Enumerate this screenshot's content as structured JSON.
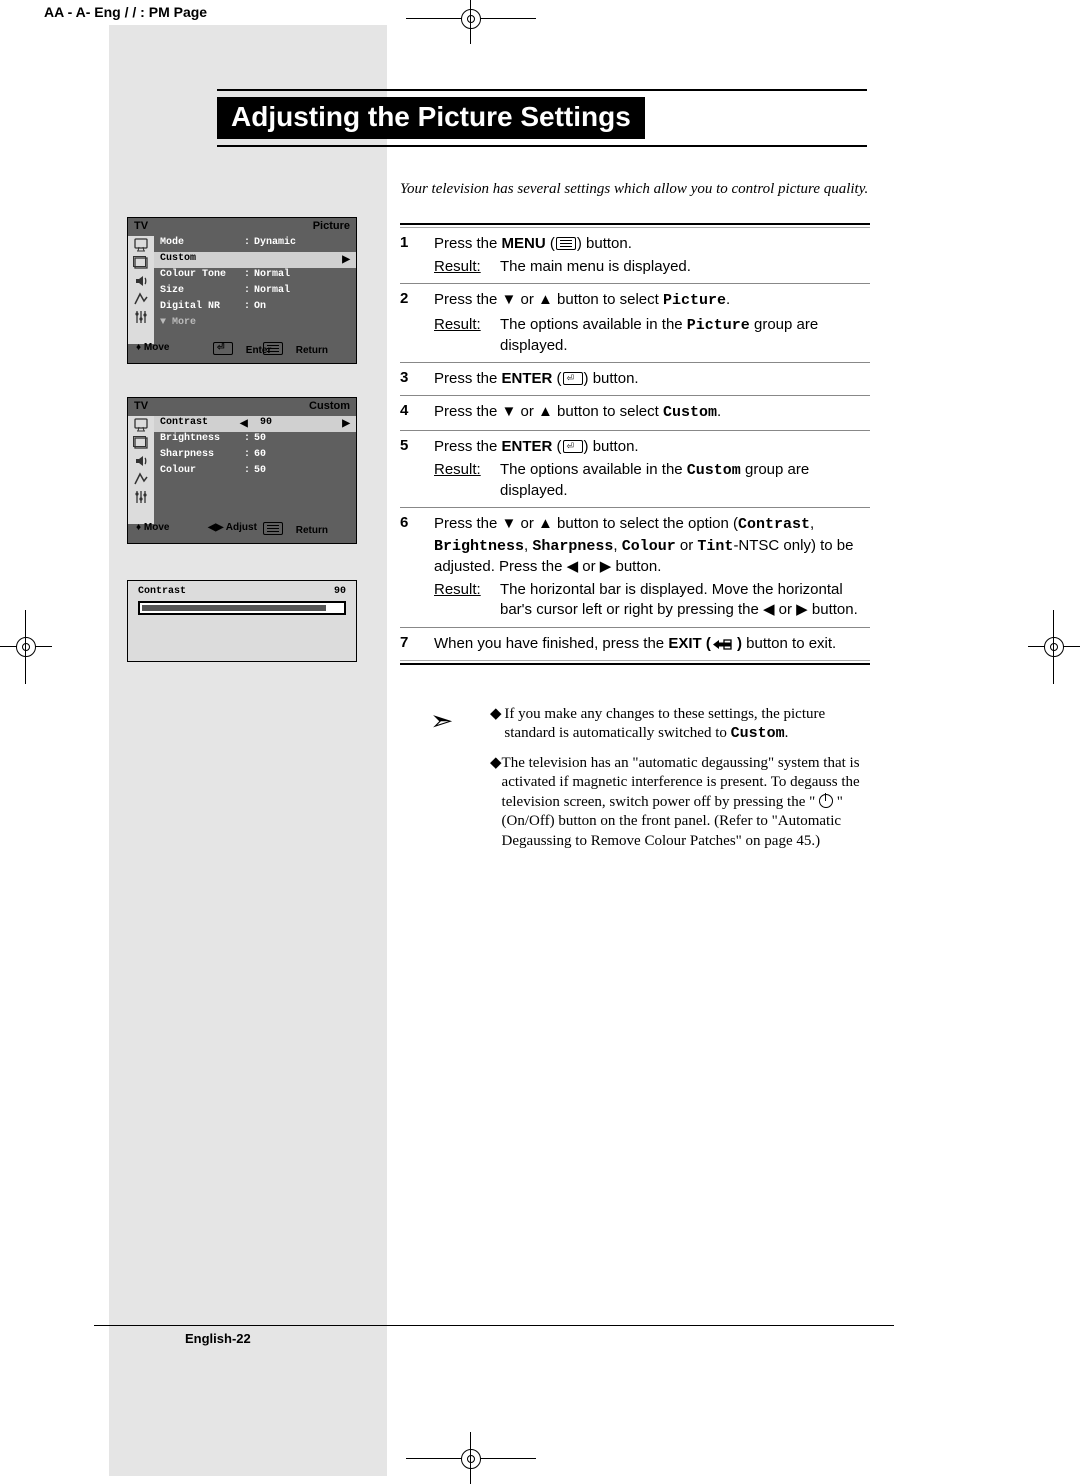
{
  "header_text": "AA   -     A-  Eng   /   /      :   PM  Page ",
  "title": "Adjusting the Picture Settings",
  "intro": "Your television has several settings which allow you to control picture quality.",
  "page_label": "English-22",
  "osd": {
    "tv_label": "TV",
    "menu1": {
      "heading": "Picture",
      "rows": [
        {
          "label": "Mode",
          "value": "Dynamic",
          "colon": ":"
        },
        {
          "label": "Custom",
          "value": "",
          "selected": true
        },
        {
          "label": "Colour Tone",
          "value": "Normal",
          "colon": ":"
        },
        {
          "label": "Size",
          "value": "Normal",
          "colon": ":"
        },
        {
          "label": "Digital NR",
          "value": "On",
          "colon": ":"
        },
        {
          "label": "▼ More",
          "value": "",
          "dim": true
        }
      ],
      "footer": {
        "move": "Move",
        "action": "Enter",
        "return": "Return"
      }
    },
    "menu2": {
      "heading": "Custom",
      "rows": [
        {
          "label": "Contrast",
          "value": "90",
          "selected": true,
          "arrows": true
        },
        {
          "label": "Brightness",
          "value": "50",
          "colon": ":"
        },
        {
          "label": "Sharpness",
          "value": "60",
          "colon": ":"
        },
        {
          "label": "Colour",
          "value": "50",
          "colon": ":"
        }
      ],
      "footer": {
        "move": "Move",
        "action": "Adjust",
        "return": "Return"
      }
    },
    "slider": {
      "label": "Contrast",
      "value": "90",
      "percent": 90
    }
  },
  "steps": [
    {
      "n": "1",
      "pre": "Press the ",
      "bold": "MENU",
      "icon": "menu",
      "post": " button.",
      "result": "The main menu is displayed."
    },
    {
      "n": "2",
      "html": "Press the ▼ or ▲ button to select <span class=\"mono\">Picture</span>.",
      "result": "The options available in the <span class=\"mono\">Picture</span> group are displayed."
    },
    {
      "n": "3",
      "pre": "Press the ",
      "bold": "ENTER",
      "icon": "enter",
      "post": " button."
    },
    {
      "n": "4",
      "html": "Press the ▼ or ▲ button to select <span class=\"mono\">Custom</span>."
    },
    {
      "n": "5",
      "pre": "Press the ",
      "bold": "ENTER",
      "icon": "enter",
      "post": " button.",
      "result": "The options available in the <span class=\"mono\">Custom</span> group are displayed."
    },
    {
      "n": "6",
      "html": "Press the ▼ or ▲ button to select the option (<span class=\"mono\">Contrast</span>, <span class=\"mono\">Brightness</span>, <span class=\"mono\">Sharpness</span>, <span class=\"mono\">Colour</span> or <span class=\"mono\">Tint</span>-NTSC only) to be adjusted. Press the ◀ or ▶ button.",
      "result": "The horizontal bar is displayed. Move the horizontal bar's cursor left or right by pressing the ◀ or ▶ button."
    },
    {
      "n": "7",
      "html": "When you have finished, press the <span class=\"b\">EXIT (</span><span class=\"iexit\"><svg viewBox=\"0 0 22 11\"><path d=\"M2 5.5 L8 1 L8 3.5 L20 3.5 L20 7.5 L8 7.5 L8 10 Z\" fill=\"#000\"/><rect x=\"13\" y=\"1\" width=\"7\" height=\"9\" fill=\"none\" stroke=\"#000\" stroke-width=\"1.3\"/></svg></span><span class=\"b\"> )</span> button to exit."
    }
  ],
  "notes": [
    "If you make any changes to these settings, the picture standard is automatically switched to <span class=\"mono\">Custom</span>.",
    "The television has an \"automatic degaussing\" system that is activated if magnetic interference is present. To degauss the television screen, switch power off by pressing the \" <span class=\"pwr\"></span> \" (On/Off) button on the front panel. (Refer to \"Automatic Degaussing to Remove Colour Patches\" on page 45.)"
  ]
}
